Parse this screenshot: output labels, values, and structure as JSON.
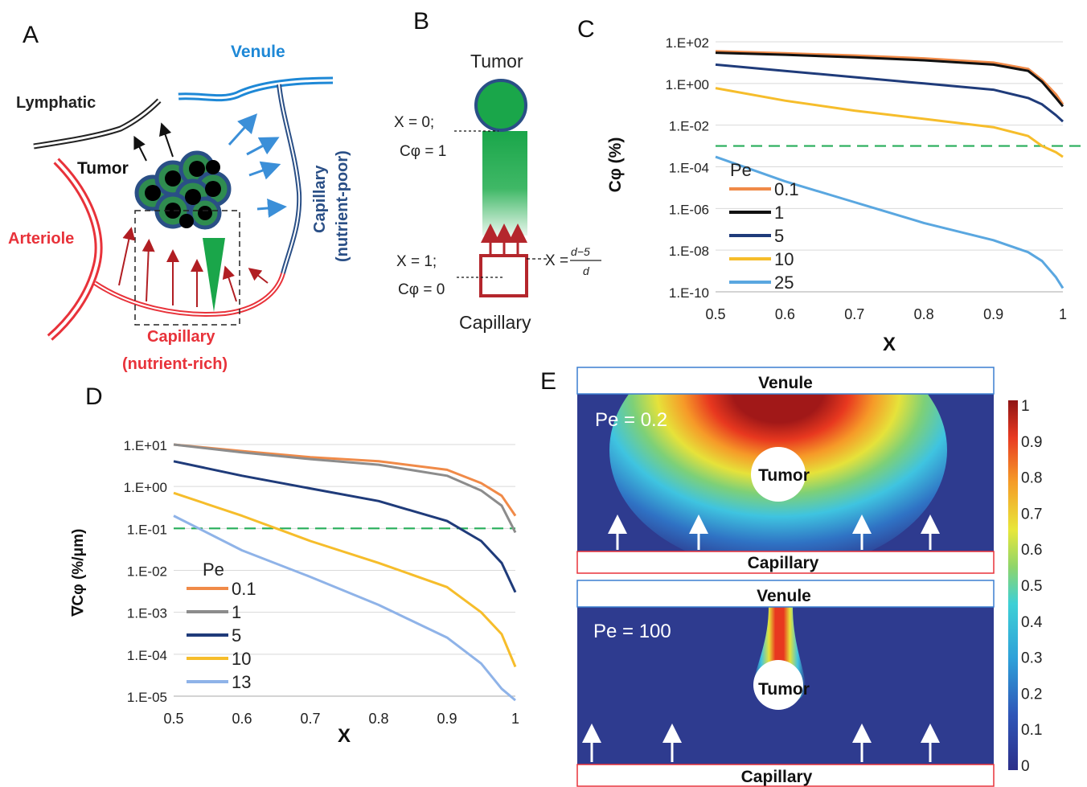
{
  "panel_letters": {
    "a": "A",
    "b": "B",
    "c": "C",
    "d": "D",
    "e": "E"
  },
  "colors": {
    "vessel_red": "#e8323a",
    "vessel_blue": "#1e88d6",
    "dark_blue": "#2a4f86",
    "green": "#1aa64a",
    "pe_0_1": "#f08a48",
    "pe_1_c": "#111111",
    "pe_1_d": "#8c8c8c",
    "pe_5": "#1f3b7a",
    "pe_10": "#f6bd2b",
    "pe_25": "#5aa7e0",
    "threshold": "#27ae5a",
    "field_bg": "#2e3b8f"
  },
  "panel_a": {
    "lymphatic": "Lymphatic",
    "venule": "Venule",
    "tumor": "Tumor",
    "arteriole": "Arteriole",
    "capillary_right": "Capillary",
    "capillary_right_sub": "(nutrient-poor)",
    "capillary_bottom": "Capillary",
    "capillary_bottom_sub": "(nutrient-rich)"
  },
  "panel_b": {
    "tumor": "Tumor",
    "x0": "X = 0;",
    "c1": "Cφ = 1",
    "x1": "X = 1;",
    "c0": "Cφ = 0",
    "capillary": "Capillary",
    "xeq": "X =",
    "frac_num": "d−5",
    "frac_den": "d"
  },
  "chart_data": [
    {
      "type": "line",
      "panel": "C",
      "ylabel": "Cφ (%)",
      "xlabel": "X",
      "xlim": [
        0.5,
        1.0
      ],
      "ylim": [
        1e-10,
        100
      ],
      "yscale": "log",
      "x_ticks": [
        "0.5",
        "0.6",
        "0.7",
        "0.8",
        "0.9",
        "1"
      ],
      "y_ticks": [
        "1.E+02",
        "1.E+00",
        "1.E-02",
        "1.E-04",
        "1.E-06",
        "1.E-08",
        "1.E-10"
      ],
      "legend_title": "Pe",
      "legend_position": "left",
      "threshold": 0.001,
      "series": [
        {
          "name": "0.1",
          "x": [
            0.5,
            0.6,
            0.7,
            0.8,
            0.9,
            0.95,
            0.97,
            0.99,
            1.0
          ],
          "y": [
            35,
            28,
            22,
            16,
            10,
            5,
            1.5,
            0.3,
            0.1
          ]
        },
        {
          "name": "1",
          "x": [
            0.5,
            0.6,
            0.7,
            0.8,
            0.9,
            0.95,
            0.97,
            0.99,
            1.0
          ],
          "y": [
            30,
            24,
            18,
            13,
            8,
            4,
            1.2,
            0.2,
            0.08
          ]
        },
        {
          "name": "5",
          "x": [
            0.5,
            0.6,
            0.7,
            0.8,
            0.9,
            0.95,
            0.97,
            0.99,
            1.0
          ],
          "y": [
            8,
            4,
            2,
            1,
            0.5,
            0.2,
            0.1,
            0.03,
            0.015
          ]
        },
        {
          "name": "10",
          "x": [
            0.5,
            0.6,
            0.7,
            0.8,
            0.9,
            0.95,
            0.97,
            0.99,
            1.0
          ],
          "y": [
            0.6,
            0.15,
            0.05,
            0.02,
            0.008,
            0.003,
            0.001,
            0.0005,
            0.0003
          ]
        },
        {
          "name": "25",
          "x": [
            0.5,
            0.6,
            0.7,
            0.8,
            0.9,
            0.95,
            0.97,
            0.99,
            1.0
          ],
          "y": [
            0.0003,
            2e-05,
            2e-06,
            2e-07,
            3e-08,
            8e-09,
            3e-09,
            5e-10,
            1.5e-10
          ]
        }
      ]
    },
    {
      "type": "line",
      "panel": "D",
      "ylabel": "∇Cφ (%/μm)",
      "xlabel": "X",
      "xlim": [
        0.5,
        1.0
      ],
      "ylim": [
        1e-05,
        10
      ],
      "yscale": "log",
      "x_ticks": [
        "0.5",
        "0.6",
        "0.7",
        "0.8",
        "0.9",
        "1"
      ],
      "y_ticks": [
        "1.E+01",
        "1.E+00",
        "1.E-01",
        "1.E-02",
        "1.E-03",
        "1.E-04",
        "1.E-05"
      ],
      "legend_title": "Pe",
      "legend_position": "left",
      "threshold": 0.1,
      "series": [
        {
          "name": "0.1",
          "x": [
            0.5,
            0.6,
            0.7,
            0.8,
            0.9,
            0.95,
            0.98,
            1.0
          ],
          "y": [
            10,
            7,
            5,
            4,
            2.5,
            1.2,
            0.6,
            0.2
          ]
        },
        {
          "name": "1",
          "x": [
            0.5,
            0.6,
            0.7,
            0.8,
            0.9,
            0.95,
            0.98,
            1.0
          ],
          "y": [
            10,
            6.5,
            4.5,
            3.3,
            1.8,
            0.8,
            0.35,
            0.08
          ]
        },
        {
          "name": "5",
          "x": [
            0.5,
            0.6,
            0.7,
            0.8,
            0.9,
            0.95,
            0.98,
            1.0
          ],
          "y": [
            4,
            1.8,
            0.9,
            0.45,
            0.15,
            0.05,
            0.015,
            0.003
          ]
        },
        {
          "name": "10",
          "x": [
            0.5,
            0.6,
            0.7,
            0.8,
            0.9,
            0.95,
            0.98,
            1.0
          ],
          "y": [
            0.7,
            0.2,
            0.05,
            0.015,
            0.004,
            0.001,
            0.0003,
            5e-05
          ]
        },
        {
          "name": "13",
          "x": [
            0.5,
            0.6,
            0.7,
            0.8,
            0.9,
            0.95,
            0.98,
            1.0
          ],
          "y": [
            0.2,
            0.03,
            0.007,
            0.0015,
            0.00025,
            6e-05,
            1.5e-05,
            8e-06
          ]
        }
      ]
    }
  ],
  "panel_e": {
    "venule": "Venule",
    "capillary": "Capillary",
    "tumor": "Tumor",
    "pe_top": "Pe = 0.2",
    "pe_bottom": "Pe = 100",
    "colorbar_ticks": [
      "1",
      "0.9",
      "0.8",
      "0.7",
      "0.6",
      "0.5",
      "0.4",
      "0.3",
      "0.2",
      "0.1",
      "0"
    ]
  }
}
